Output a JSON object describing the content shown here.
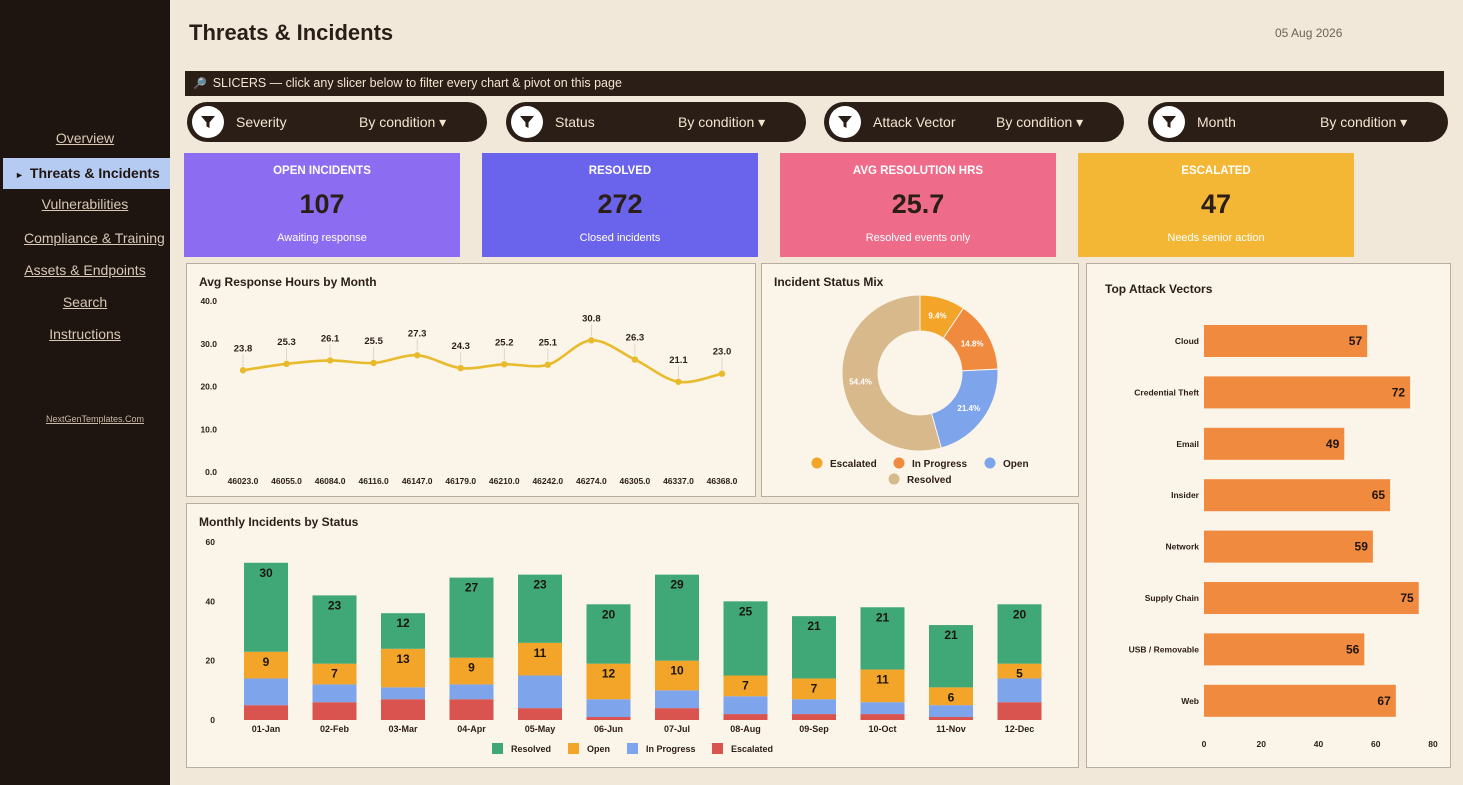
{
  "nav": {
    "items": [
      {
        "label": "Overview"
      },
      {
        "label": "Threats & Incidents",
        "active": true
      },
      {
        "label": "Vulnerabilities"
      },
      {
        "label": "Compliance & Training"
      },
      {
        "label": "Assets & Endpoints"
      },
      {
        "label": "Search"
      },
      {
        "label": "Instructions"
      }
    ],
    "brand": "NextGenTemplates.Com"
  },
  "header": {
    "title": "Threats & Incidents",
    "date": "05 Aug 2026"
  },
  "slicer_banner": "SLICERS — click any slicer below to filter every chart & pivot on this page",
  "slicers": [
    {
      "name": "Severity",
      "condition": "By condition"
    },
    {
      "name": "Status",
      "condition": "By condition"
    },
    {
      "name": "Attack Vector",
      "condition": "By condition"
    },
    {
      "name": "Month",
      "condition": "By condition"
    }
  ],
  "kpis": [
    {
      "label": "OPEN INCIDENTS",
      "value": "107",
      "sub": "Awaiting response",
      "color": "#8c6cf0"
    },
    {
      "label": "RESOLVED",
      "value": "272",
      "sub": "Closed incidents",
      "color": "#6a63ec"
    },
    {
      "label": "AVG RESOLUTION HRS",
      "value": "25.7",
      "sub": "Resolved events only",
      "color": "#ee6b8a"
    },
    {
      "label": "ESCALATED",
      "value": "47",
      "sub": "Needs senior action",
      "color": "#f4b735"
    }
  ],
  "charts": {
    "response": {
      "title": "Avg Response Hours by Month",
      "chart_data": {
        "type": "line",
        "x": [
          "46023.0",
          "46055.0",
          "46084.0",
          "46116.0",
          "46147.0",
          "46179.0",
          "46210.0",
          "46242.0",
          "46274.0",
          "46305.0",
          "46337.0",
          "46368.0"
        ],
        "values": [
          23.8,
          25.3,
          26.1,
          25.5,
          27.3,
          24.3,
          25.2,
          25.1,
          30.8,
          26.3,
          21.1,
          23.0
        ],
        "y_ticks": [
          "40.0",
          "30.0",
          "20.0",
          "10.0",
          "0.0"
        ],
        "ylim": [
          0,
          40
        ],
        "color": "#e8bb2c"
      }
    },
    "status_mix": {
      "title": "Incident Status Mix",
      "chart_data": {
        "type": "pie",
        "labels": [
          "Escalated",
          "In Progress",
          "Open",
          "Resolved"
        ],
        "values": [
          9.4,
          14.8,
          21.4,
          54.4
        ],
        "value_labels": [
          "9.4%",
          "14.8%",
          "21.4%",
          "54.4%"
        ],
        "colors": [
          "#f3a52a",
          "#ef8a3e",
          "#7ea4ec",
          "#d8b98c"
        ]
      }
    },
    "monthly": {
      "title": "Monthly Incidents by Status",
      "chart_data": {
        "type": "bar",
        "stacked": true,
        "categories": [
          "01-Jan",
          "02-Feb",
          "03-Mar",
          "04-Apr",
          "05-May",
          "06-Jun",
          "07-Jul",
          "08-Aug",
          "09-Sep",
          "10-Oct",
          "11-Nov",
          "12-Dec"
        ],
        "series": [
          {
            "name": "Escalated",
            "color": "#d9534f",
            "values": [
              5,
              6,
              7,
              7,
              4,
              1,
              4,
              2,
              2,
              2,
              1,
              6
            ]
          },
          {
            "name": "In Progress",
            "color": "#7ea4ec",
            "values": [
              9,
              6,
              4,
              5,
              11,
              6,
              6,
              6,
              5,
              4,
              4,
              8
            ]
          },
          {
            "name": "Open",
            "color": "#f3a52a",
            "values": [
              9,
              7,
              13,
              9,
              11,
              12,
              10,
              7,
              7,
              11,
              6,
              5
            ]
          },
          {
            "name": "Resolved",
            "color": "#3fa876",
            "values": [
              30,
              23,
              12,
              27,
              23,
              20,
              29,
              25,
              21,
              21,
              21,
              20
            ]
          }
        ],
        "labeled_series": [
          "Open",
          "Resolved"
        ],
        "legend_order": [
          "Resolved",
          "Open",
          "In Progress",
          "Escalated"
        ],
        "y_ticks": [
          0,
          20,
          40,
          60
        ],
        "ylim": [
          0,
          60
        ]
      }
    },
    "vectors": {
      "title": "Top Attack Vectors",
      "chart_data": {
        "type": "bar",
        "orientation": "horizontal",
        "categories": [
          "Cloud",
          "Credential Theft",
          "Email",
          "Insider",
          "Network",
          "Supply Chain",
          "USB / Removable",
          "Web"
        ],
        "values": [
          57,
          72,
          49,
          65,
          59,
          75,
          56,
          67
        ],
        "x_ticks": [
          0,
          20,
          40,
          60,
          80
        ],
        "xlim": [
          0,
          80
        ],
        "color": "#ef8a3e"
      }
    }
  }
}
